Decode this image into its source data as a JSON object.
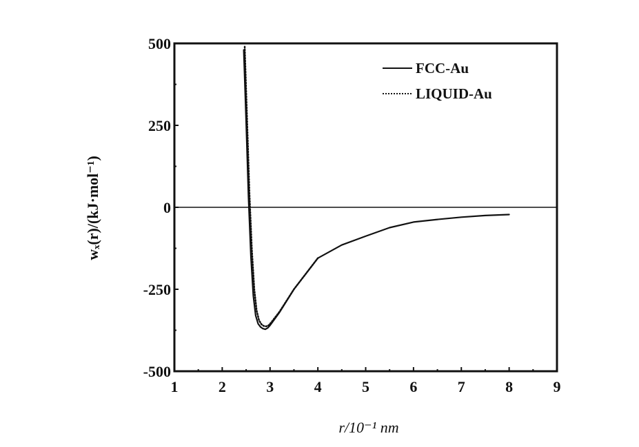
{
  "chart_data": {
    "type": "line",
    "title": "",
    "xlabel": "r/10⁻¹ nm",
    "ylabel": "wₓ(r)/(kJ·mol⁻¹)",
    "xlim": [
      1,
      9
    ],
    "ylim": [
      -500,
      500
    ],
    "xticks": [
      "1",
      "2",
      "3",
      "4",
      "5",
      "6",
      "7",
      "8",
      "9"
    ],
    "yticks": [
      "500",
      "250",
      "0",
      "-250",
      "-500"
    ],
    "grid": false,
    "legend_position": "top-right",
    "zero_line": true,
    "series": [
      {
        "name": "FCC-Au",
        "style": "solid",
        "x": [
          2.45,
          2.5,
          2.55,
          2.6,
          2.65,
          2.7,
          2.75,
          2.8,
          2.85,
          2.9,
          2.95,
          3.0,
          3.2,
          3.5,
          4.0,
          4.5,
          5.0,
          5.5,
          6.0,
          6.5,
          7.0,
          7.5,
          8.0
        ],
        "y": [
          480,
          260,
          30,
          -150,
          -270,
          -330,
          -355,
          -365,
          -370,
          -372,
          -368,
          -360,
          -320,
          -250,
          -155,
          -115,
          -88,
          -62,
          -45,
          -37,
          -30,
          -25,
          -22
        ]
      },
      {
        "name": "LIQUID-Au",
        "style": "dotted",
        "x": [
          2.47,
          2.52,
          2.57,
          2.62,
          2.67,
          2.72,
          2.77,
          2.82,
          2.87,
          2.92,
          2.97,
          3.02,
          3.2,
          3.5,
          4.0
        ],
        "y": [
          490,
          270,
          40,
          -130,
          -250,
          -315,
          -345,
          -357,
          -362,
          -363,
          -360,
          -352,
          -318,
          -250,
          -155
        ]
      }
    ]
  }
}
